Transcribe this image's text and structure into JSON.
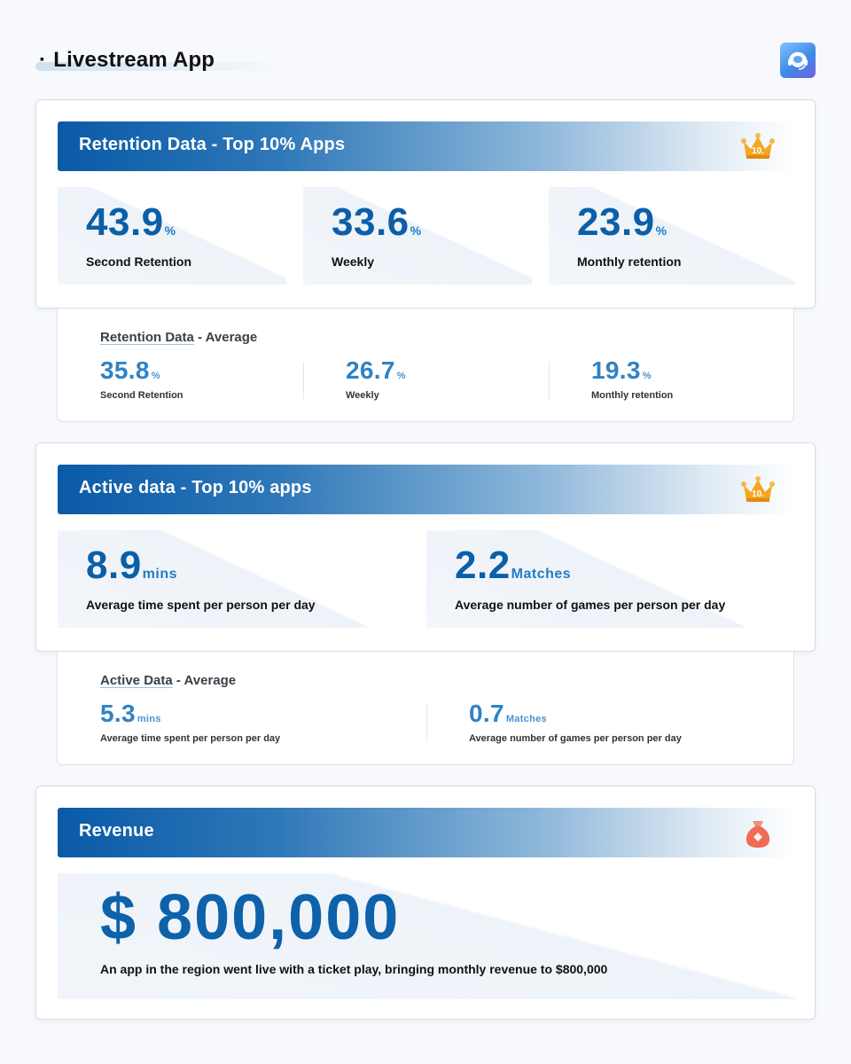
{
  "header": {
    "title": "Livestream App",
    "bullet": "·",
    "logo_icon": "headset-icon"
  },
  "retention_top": {
    "title": "Retention Data - Top 10% Apps",
    "badge_icon": "crown-icon",
    "badge_text": "10.",
    "metrics": [
      {
        "value": "43.9",
        "unit": "%",
        "label": "Second Retention"
      },
      {
        "value": "33.6",
        "unit": "%",
        "label": "Weekly"
      },
      {
        "value": "23.9",
        "unit": "%",
        "label": "Monthly retention"
      }
    ]
  },
  "retention_avg": {
    "title_a": "Retention Data",
    "title_b": " - Average",
    "metrics": [
      {
        "value": "35.8",
        "unit": "%",
        "label": "Second Retention"
      },
      {
        "value": "26.7",
        "unit": "%",
        "label": "Weekly"
      },
      {
        "value": "19.3",
        "unit": "%",
        "label": "Monthly retention"
      }
    ]
  },
  "active_top": {
    "title": "Active data - Top 10% apps",
    "badge_icon": "crown-icon",
    "badge_text": "10.",
    "metrics": [
      {
        "value": "8.9",
        "unit": "mins",
        "label": "Average time spent per person per day"
      },
      {
        "value": "2.2",
        "unit": "Matches",
        "label": "Average number of games per person per day"
      }
    ]
  },
  "active_avg": {
    "title_a": "Active Data",
    "title_b": " - Average",
    "metrics": [
      {
        "value": "5.3",
        "unit": "mins",
        "label": "Average time spent per person per day"
      },
      {
        "value": "0.7",
        "unit": "Matches",
        "label": "Average number of games per person per day"
      }
    ]
  },
  "revenue": {
    "title": "Revenue",
    "badge_icon": "money-bag-icon",
    "value": "$ 800,000",
    "description": "An app in the region went live with a ticket play, bringing monthly revenue to $800,000"
  },
  "colors": {
    "accent": "#0b5fa8",
    "accent_light": "#2f83c6",
    "banner_start": "#0a5aa8",
    "crown": "#f5a623",
    "bag": "#f06a55"
  }
}
